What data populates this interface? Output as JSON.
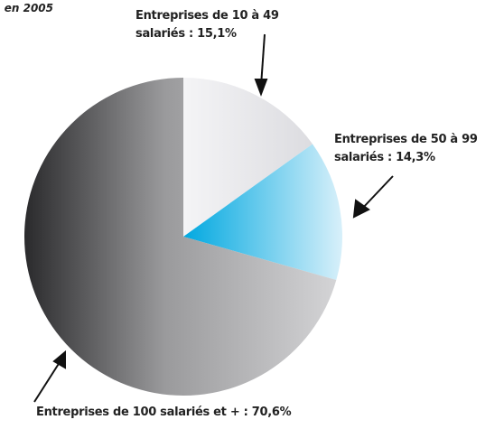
{
  "chart_data": {
    "type": "pie",
    "title": ", en 2005",
    "categories": [
      "Entreprises de 10 à 49 salariés :",
      "Entreprises de 50 à 99 salariés :",
      "Entreprises de 100 salariés et + :"
    ],
    "values": [
      15.1,
      14.3,
      70.6
    ],
    "value_labels": [
      "15,1%",
      "14,3%",
      "70,6%"
    ],
    "colors": [
      "#ebebee",
      "#2ab4e4",
      "#9a9a9c"
    ]
  }
}
